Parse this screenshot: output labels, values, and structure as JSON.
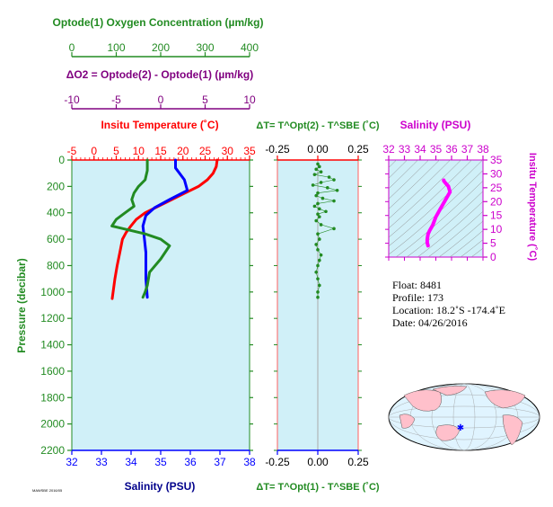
{
  "labels": {
    "oxygen_title": "Optode(1) Oxygen Concentration (µm/kg)",
    "delta_o2_title": "ΔO2 = Optode(2) - Optode(1)   (µm/kg)",
    "insitu_temp_title": "Insitu Temperature (˚C)",
    "pressure_label": "Pressure (decibar)",
    "salinity_bottom_label": "Salinity (PSU)",
    "dt_top_title": "ΔT= T^Opt(2) - T^SBE (˚C)",
    "dt_bottom_title": "ΔT= T^Opt(1) - T^SBE (˚C)",
    "ts_salinity_title": "Salinity (PSU)",
    "ts_temp_label": "Insitu Temperature (˚C)",
    "footer_id": "MAWSBE 2016/05"
  },
  "float_info": {
    "float_line": "Float:  8481",
    "profile_line": "Profile:  173",
    "location_line": "Location:  18.2˚S  -174.4˚E",
    "date_line": "Date:  04/26/2016"
  },
  "colors": {
    "background": "#d0f0f8",
    "temperature": "#ff0000",
    "salinity": "#0000ff",
    "oxygen": "#228b22",
    "delta_o2": "#800080",
    "ts_curve": "#ff00ff",
    "pressure_axis": "#228b22"
  },
  "chart_data": [
    {
      "type": "line",
      "name": "main-profile",
      "ylabel": "Pressure (decibar)",
      "ylim": [
        2200,
        0
      ],
      "yticks": [
        0,
        200,
        400,
        600,
        800,
        1000,
        1200,
        1400,
        1600,
        1800,
        2000,
        2200
      ],
      "axes": {
        "temperature": {
          "range": [
            -5,
            35
          ],
          "ticks": [
            -5,
            0,
            5,
            10,
            15,
            20,
            25,
            30,
            35
          ]
        },
        "salinity": {
          "range": [
            32,
            38
          ],
          "ticks": [
            32,
            33,
            34,
            35,
            36,
            37,
            38
          ]
        },
        "oxygen": {
          "range": [
            0,
            400
          ],
          "ticks": [
            0,
            100,
            200,
            300,
            400
          ]
        },
        "delta_o2": {
          "range": [
            -10,
            10
          ],
          "ticks": [
            -10,
            -5,
            0,
            5,
            10
          ]
        }
      },
      "series": [
        {
          "name": "Insitu Temperature",
          "axis": "temperature",
          "x": [
            27.7,
            27.5,
            26.8,
            25.5,
            23.5,
            20.5,
            17.5,
            14.5,
            11.5,
            9.5,
            8.3,
            7.2,
            6.4,
            5.8,
            5.2,
            4.7,
            4.3,
            4.1
          ],
          "pressure": [
            0,
            50,
            100,
            150,
            200,
            250,
            300,
            350,
            400,
            450,
            500,
            550,
            600,
            700,
            800,
            900,
            1000,
            1050
          ]
        },
        {
          "name": "Salinity",
          "axis": "salinity",
          "x": [
            35.5,
            35.5,
            35.6,
            35.8,
            35.9,
            35.3,
            34.8,
            34.5,
            34.4,
            34.45,
            34.5,
            34.5,
            34.5,
            34.55
          ],
          "pressure": [
            0,
            60,
            90,
            150,
            230,
            300,
            360,
            420,
            500,
            600,
            700,
            800,
            900,
            1040
          ]
        },
        {
          "name": "Optode(1) Oxygen",
          "axis": "oxygen",
          "x": [
            170,
            170,
            165,
            150,
            140,
            135,
            140,
            120,
            100,
            90,
            115,
            165,
            200,
            220,
            200,
            175,
            170,
            165,
            160
          ],
          "pressure": [
            0,
            80,
            150,
            200,
            250,
            300,
            350,
            400,
            450,
            500,
            520,
            560,
            600,
            650,
            750,
            850,
            950,
            1000,
            1040
          ]
        }
      ]
    },
    {
      "type": "scatter",
      "name": "delta-t",
      "xlim": [
        -0.25,
        0.25
      ],
      "xticks": [
        -0.25,
        0.0,
        0.25
      ],
      "ylim": [
        2200,
        0
      ],
      "series": [
        {
          "name": "ΔT Opt(2) - SBE",
          "x": [
            0.0,
            0.01,
            -0.01,
            0.02,
            -0.02,
            0.07,
            0.1,
            0.02,
            -0.03,
            0.06,
            0.12,
            0.0,
            -0.01,
            0.03,
            0.1,
            0.0,
            -0.02,
            0.01,
            0.05,
            0.0,
            0.01,
            -0.01,
            0.02,
            0.1,
            0.0,
            0.01,
            -0.01,
            0.0,
            0.02,
            0.01,
            0.0,
            -0.01,
            0.0,
            0.01,
            0.0,
            0.0
          ],
          "pressure": [
            30,
            50,
            70,
            90,
            110,
            130,
            150,
            170,
            190,
            210,
            230,
            250,
            270,
            290,
            310,
            330,
            350,
            370,
            390,
            410,
            430,
            460,
            490,
            520,
            560,
            600,
            640,
            680,
            720,
            760,
            800,
            850,
            900,
            950,
            1000,
            1040
          ]
        }
      ]
    },
    {
      "type": "line",
      "name": "temperature-salinity",
      "xlabel": "Salinity (PSU)",
      "ylabel": "Insitu Temperature (˚C)",
      "xlim": [
        32,
        38
      ],
      "xticks": [
        32,
        33,
        34,
        35,
        36,
        37,
        38
      ],
      "ylim": [
        0,
        35
      ],
      "yticks": [
        0,
        5,
        10,
        15,
        20,
        25,
        30,
        35
      ],
      "series": [
        {
          "name": "T-S",
          "salinity": [
            35.5,
            35.5,
            35.6,
            35.8,
            35.9,
            35.6,
            35.3,
            35.0,
            34.8,
            34.6,
            34.5,
            34.45,
            34.45,
            34.5
          ],
          "temperature": [
            27.7,
            27.5,
            26.8,
            25.5,
            23.5,
            20.5,
            17.5,
            14.5,
            11.5,
            9.5,
            8.3,
            6.4,
            5.2,
            4.1
          ]
        }
      ]
    }
  ]
}
